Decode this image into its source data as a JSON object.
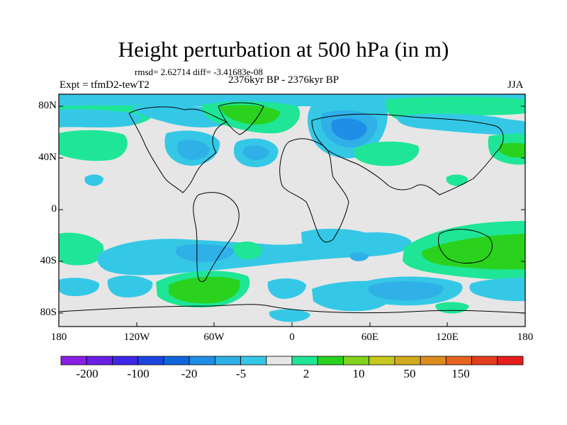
{
  "title": "Height perturbation at 500 hPa (in m)",
  "stats": "rmsd= 2.62714 diff= -3.41683e-08",
  "left_label": "Expt = tfmD2-tewT2",
  "center_label": "2376kyr BP - 2376kyr BP",
  "right_label": "JJA",
  "y_ticks": [
    "80N",
    "40N",
    "0",
    "40S",
    "80S"
  ],
  "x_ticks": [
    "180",
    "120W",
    "60W",
    "0",
    "60E",
    "120E",
    "180"
  ],
  "colorbar": {
    "colors": [
      "#8a1ee6",
      "#6a1ee6",
      "#3c28e6",
      "#1c46e0",
      "#1266dc",
      "#1f8ee6",
      "#2fb0e6",
      "#35c8e6",
      "#e6e6e6",
      "#1ee696",
      "#2ad21e",
      "#82d21e",
      "#c8c81e",
      "#d2aa1e",
      "#dc8c1e",
      "#e6641e",
      "#e63c1e",
      "#e61e1e"
    ],
    "labels": [
      "-200",
      "-100",
      "-20",
      "-5",
      "2",
      "10",
      "50",
      "150"
    ]
  },
  "map": {
    "background": "#e6e6e6",
    "colors": {
      "neg_light": "#35c8e6",
      "neg_mid": "#2fb0e6",
      "neg_dark": "#1f8ee6",
      "pos_light": "#1ee696",
      "pos_mid": "#2ad21e"
    }
  }
}
